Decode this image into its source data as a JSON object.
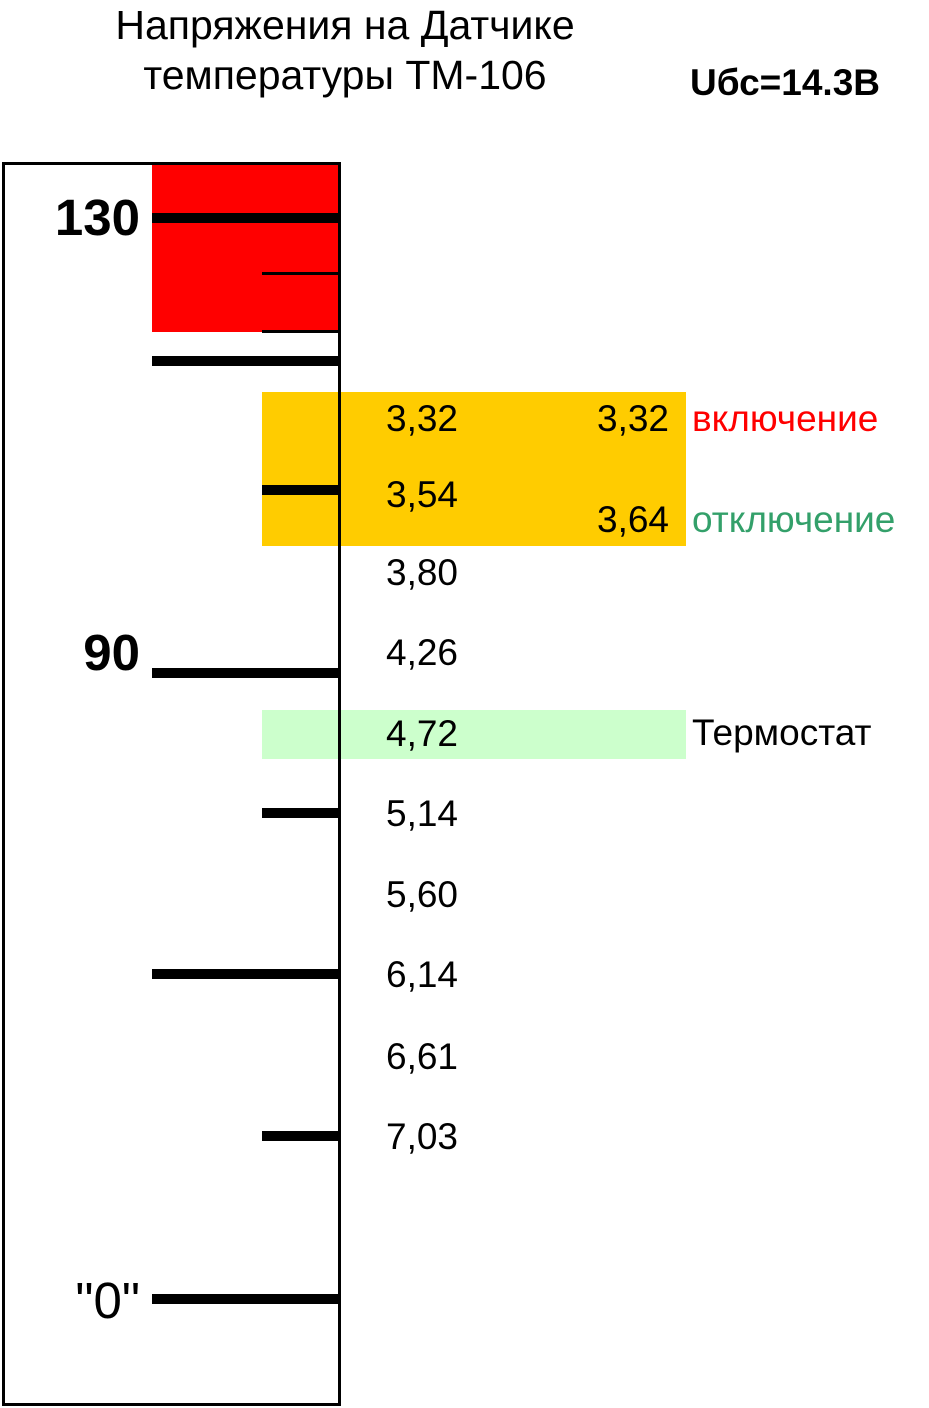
{
  "title": {
    "line1": "Напряжения на Датчике",
    "line2": "температуры ТМ-106"
  },
  "supply_label": "Uбс=14.3В",
  "colors": {
    "red_zone": "#ff0000",
    "orange_zone": "#ffcc00",
    "green_zone": "#ccffcc",
    "on_label": "#ff0000",
    "off_label": "#33a06a",
    "tick": "#000000"
  },
  "temperature_labels": {
    "t130": "130",
    "t90": "90",
    "t0": "\"0\""
  },
  "voltages": [
    "3,32",
    "3,54",
    "3,80",
    "4,26",
    "4,72",
    "5,14",
    "5,60",
    "6,14",
    "6,61",
    "7,03"
  ],
  "fan": {
    "on_value": "3,32",
    "on_label": "включение",
    "off_value": "3,64",
    "off_label": "отключение"
  },
  "thermostat_label": "Термостат"
}
